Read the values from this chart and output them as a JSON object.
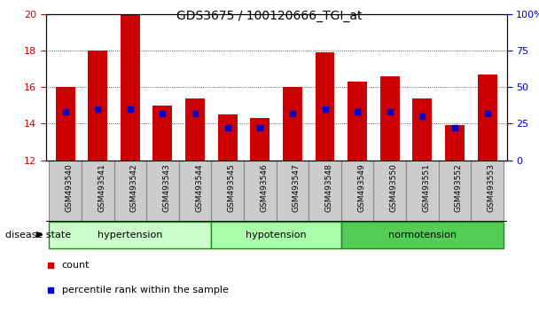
{
  "title": "GDS3675 / 100120666_TGI_at",
  "samples": [
    "GSM493540",
    "GSM493541",
    "GSM493542",
    "GSM493543",
    "GSM493544",
    "GSM493545",
    "GSM493546",
    "GSM493547",
    "GSM493548",
    "GSM493549",
    "GSM493550",
    "GSM493551",
    "GSM493552",
    "GSM493553"
  ],
  "count_values": [
    16.0,
    18.0,
    20.0,
    15.0,
    15.4,
    14.5,
    14.3,
    16.0,
    17.9,
    16.3,
    16.6,
    15.4,
    13.9,
    16.7
  ],
  "percentile_values": [
    33,
    35,
    35,
    32,
    32,
    22,
    22,
    32,
    35,
    33,
    33,
    30,
    22,
    32
  ],
  "ylim_left": [
    12,
    20
  ],
  "ylim_right": [
    0,
    100
  ],
  "yticks_left": [
    12,
    14,
    16,
    18,
    20
  ],
  "yticks_right": [
    0,
    25,
    50,
    75,
    100
  ],
  "bar_color": "#cc0000",
  "percentile_color": "#0000cc",
  "bar_bottom": 12,
  "groups": [
    {
      "label": "hypertension",
      "start": 0,
      "end": 5,
      "color": "#ccffcc"
    },
    {
      "label": "hypotension",
      "start": 5,
      "end": 9,
      "color": "#aaffaa"
    },
    {
      "label": "normotension",
      "start": 9,
      "end": 14,
      "color": "#55cc55"
    }
  ],
  "disease_state_label": "disease state",
  "legend_count_label": "count",
  "legend_percentile_label": "percentile rank within the sample",
  "grid_color": "#333333",
  "tick_label_color_left": "#cc0000",
  "tick_label_color_right": "#0000cc",
  "background_color": "#ffffff",
  "plot_bg_color": "#ffffff",
  "xtick_bg_color": "#cccccc",
  "xtick_border_color": "#888888"
}
